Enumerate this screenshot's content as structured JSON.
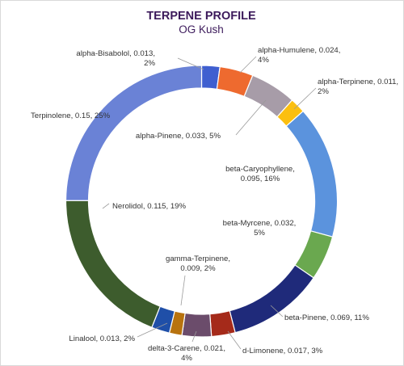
{
  "chart_data": {
    "type": "pie",
    "variant": "doughnut",
    "title": "TERPENE PROFILE",
    "subtitle": "OG Kush",
    "legend": "none",
    "slices": [
      {
        "label": "alpha-Bisabolol, 0.013,",
        "label2": "2%",
        "name": "alpha-Bisabolol",
        "value": 0.013,
        "percent": 2,
        "color": "#3f5fd0"
      },
      {
        "label": "alpha-Humulene, 0.024,",
        "label2": "4%",
        "name": "alpha-Humulene",
        "value": 0.024,
        "percent": 4,
        "color": "#ee6a2f"
      },
      {
        "label": "alpha-Pinene, 0.033, 5%",
        "label2": "",
        "name": "alpha-Pinene",
        "value": 0.033,
        "percent": 5,
        "color": "#a79ca8"
      },
      {
        "label": "alpha-Terpinene, 0.011,",
        "label2": "2%",
        "name": "alpha-Terpinene",
        "value": 0.011,
        "percent": 2,
        "color": "#fbbf10"
      },
      {
        "label": "beta-Caryophyllene,",
        "label2": "0.095, 16%",
        "name": "beta-Caryophyllene",
        "value": 0.095,
        "percent": 16,
        "color": "#5b93dd"
      },
      {
        "label": "beta-Myrcene, 0.032,",
        "label2": "5%",
        "name": "beta-Myrcene",
        "value": 0.032,
        "percent": 5,
        "color": "#6aa84f"
      },
      {
        "label": "beta-Pinene, 0.069, 11%",
        "label2": "",
        "name": "beta-Pinene",
        "value": 0.069,
        "percent": 11,
        "color": "#1f2a7a"
      },
      {
        "label": "d-Limonene, 0.017, 3%",
        "label2": "",
        "name": "d-Limonene",
        "value": 0.017,
        "percent": 3,
        "color": "#a52a1a"
      },
      {
        "label": "delta-3-Carene, 0.021,",
        "label2": "4%",
        "name": "delta-3-Carene",
        "value": 0.021,
        "percent": 4,
        "color": "#6b4c6b"
      },
      {
        "label": "gamma-Terpinene,",
        "label2": "0.009, 2%",
        "name": "gamma-Terpinene",
        "value": 0.009,
        "percent": 2,
        "color": "#b8730f"
      },
      {
        "label": "Linalool, 0.013, 2%",
        "label2": "",
        "name": "Linalool",
        "value": 0.013,
        "percent": 2,
        "color": "#1f4fa8"
      },
      {
        "label": "Nerolidol, 0.115, 19%",
        "label2": "",
        "name": "Nerolidol",
        "value": 0.115,
        "percent": 19,
        "color": "#3d5c2d"
      },
      {
        "label": "Terpinolene, 0.15, 25%",
        "label2": "",
        "name": "Terpinolene",
        "value": 0.15,
        "percent": 25,
        "color": "#6a82d6"
      }
    ]
  }
}
